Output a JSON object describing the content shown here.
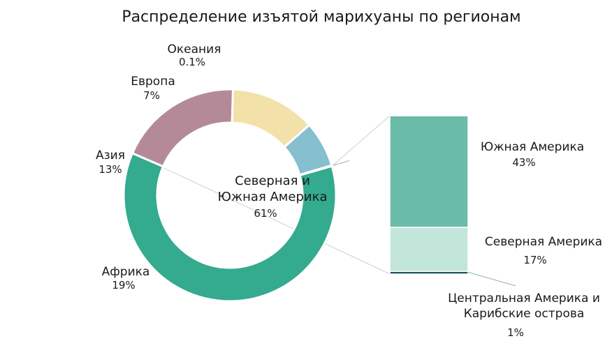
{
  "chart_data": {
    "type": "pie",
    "title": "Распределение изъятой марихуаны по регионам",
    "donut": {
      "slices": [
        {
          "name": "Северная и Южная Америка",
          "name_lines": [
            "Северная и",
            "Южная Америка"
          ],
          "value": 61,
          "value_label": "61%",
          "color": "#34aa8f"
        },
        {
          "name": "Африка",
          "value": 19,
          "value_label": "19%",
          "color": "#b58a98"
        },
        {
          "name": "Азия",
          "value": 13,
          "value_label": "13%",
          "color": "#f2e1a8"
        },
        {
          "name": "Европа",
          "value": 7,
          "value_label": "7%",
          "color": "#86bfcf"
        },
        {
          "name": "Океания",
          "value": 0.1,
          "value_label": "0.1%",
          "color": "#2e6f7e"
        }
      ]
    },
    "breakdown": {
      "type": "stacked-bar",
      "segments": [
        {
          "name": "Южная Америка",
          "name_lines": [
            "Южная Америка"
          ],
          "value": 43,
          "value_label": "43%",
          "color": "#6bbba9"
        },
        {
          "name": "Северная Америка",
          "name_lines": [
            "Северная Америка"
          ],
          "value": 17,
          "value_label": "17%",
          "color": "#c2e6da"
        },
        {
          "name": "Центральная Америка и Карибские острова",
          "name_lines": [
            "Центральная Америка и",
            "Карибские острова"
          ],
          "value": 1,
          "value_label": "1%",
          "color": "#1f5061"
        }
      ]
    }
  }
}
